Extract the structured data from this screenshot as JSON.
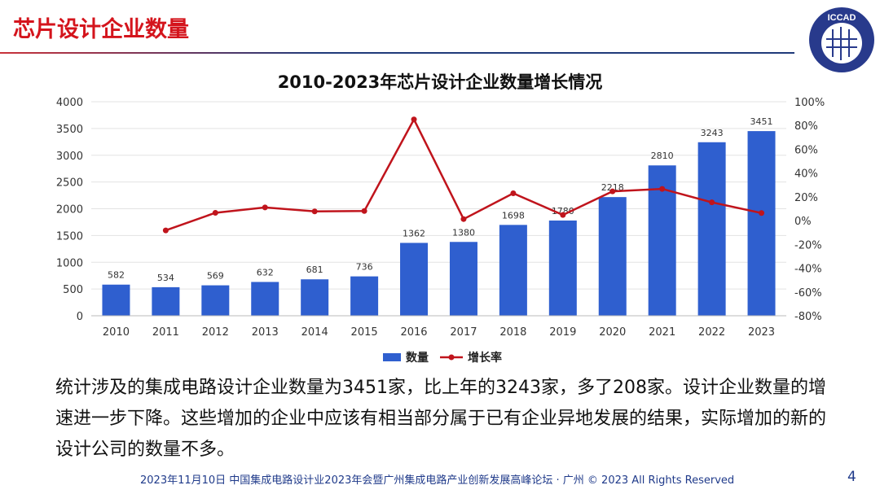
{
  "header": {
    "title": "芯片设计企业数量",
    "logo_text": "ICCAD"
  },
  "chart_data": {
    "type": "bar+line",
    "title": "2010-2023年芯片设计企业数量增长情况",
    "categories": [
      "2010",
      "2011",
      "2012",
      "2013",
      "2014",
      "2015",
      "2016",
      "2017",
      "2018",
      "2019",
      "2020",
      "2021",
      "2022",
      "2023"
    ],
    "series": [
      {
        "name": "数量",
        "type": "bar",
        "axis": "left",
        "color": "#2f5fcf",
        "values": [
          582,
          534,
          569,
          632,
          681,
          736,
          1362,
          1380,
          1698,
          1780,
          2218,
          2810,
          3243,
          3451
        ]
      },
      {
        "name": "增长率",
        "type": "line",
        "axis": "right",
        "color": "#c0141c",
        "values": [
          null,
          -8.2,
          6.6,
          11.1,
          7.8,
          8.1,
          85.1,
          1.3,
          23.0,
          4.8,
          24.6,
          26.7,
          15.4,
          6.4
        ]
      }
    ],
    "y_left": {
      "range": [
        0,
        4000
      ],
      "ticks": [
        0,
        500,
        1000,
        1500,
        2000,
        2500,
        3000,
        3500,
        4000
      ]
    },
    "y_right": {
      "range": [
        -80,
        100
      ],
      "ticks": [
        "-80%",
        "-60%",
        "-40%",
        "-20%",
        "0%",
        "20%",
        "40%",
        "60%",
        "80%",
        "100%"
      ]
    },
    "grid": true,
    "legend": "bottom"
  },
  "body": {
    "paragraph": "统计涉及的集成电路设计企业数量为3451家，比上年的3243家，多了208家。设计企业数量的增速进一步下降。这些增加的企业中应该有相当部分属于已有企业异地发展的结果，实际增加的新的设计公司的数量不多。"
  },
  "footer": {
    "text": "2023年11月10日 中国集成电路设计业2023年会暨广州集成电路产业创新发展高峰论坛 · 广州 © 2023 All Rights Reserved",
    "page": "4"
  }
}
